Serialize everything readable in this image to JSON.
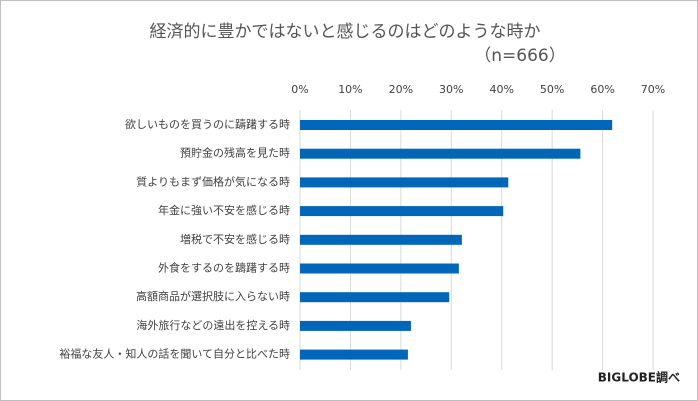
{
  "chart_data": {
    "type": "bar",
    "orientation": "horizontal",
    "title": "経済的に豊かではないと感じるのはどのような時か",
    "subtitle": "（n=666）",
    "source": "BIGLOBE調べ",
    "categories": [
      "欲しいものを買うのに躊躇する時",
      "預貯金の残高を見た時",
      "質よりもまず価格が気になる時",
      "年金に強い不安を感じる時",
      "増税で不安を感じる時",
      "外食をするのを躊躇する時",
      "高額商品が選択肢に入らない時",
      "海外旅行などの遠出を控える時",
      "裕福な友人・知人の話を聞いて自分と比べた時"
    ],
    "values": [
      61.9,
      55.6,
      41.3,
      40.3,
      32.1,
      31.5,
      29.6,
      22.0,
      21.4
    ],
    "color": "#0066b8",
    "xlim": [
      0,
      70
    ],
    "xticks": [
      {
        "value": 0,
        "label": "0%"
      },
      {
        "value": 10,
        "label": "10%"
      },
      {
        "value": 20,
        "label": "20%"
      },
      {
        "value": 30,
        "label": "30%"
      },
      {
        "value": 40,
        "label": "40%"
      },
      {
        "value": 50,
        "label": "50%"
      },
      {
        "value": 60,
        "label": "60%"
      },
      {
        "value": 70,
        "label": "70%"
      }
    ],
    "grid": true
  }
}
